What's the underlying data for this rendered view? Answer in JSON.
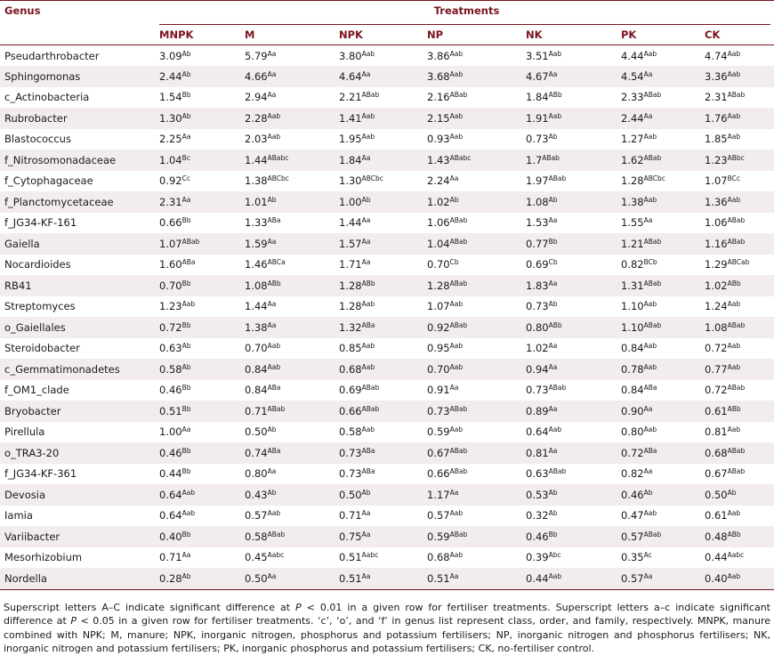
{
  "header": {
    "genus_label": "Genus",
    "treatments_label": "Treatments",
    "columns": [
      "MNPK",
      "M",
      "NPK",
      "NP",
      "NK",
      "PK",
      "CK"
    ]
  },
  "rows": [
    {
      "genus": "Pseudarthrobacter",
      "cells": [
        [
          "3.09",
          "Ab"
        ],
        [
          "5.79",
          "Aa"
        ],
        [
          "3.80",
          "Aab"
        ],
        [
          "3.86",
          "Aab"
        ],
        [
          "3.51",
          "Aab"
        ],
        [
          "4.44",
          "Aab"
        ],
        [
          "4.74",
          "Aab"
        ]
      ]
    },
    {
      "genus": "Sphingomonas",
      "cells": [
        [
          "2.44",
          "Ab"
        ],
        [
          "4.66",
          "Aa"
        ],
        [
          "4.64",
          "Aa"
        ],
        [
          "3.68",
          "Aab"
        ],
        [
          "4.67",
          "Aa"
        ],
        [
          "4.54",
          "Aa"
        ],
        [
          "3.36",
          "Aab"
        ]
      ]
    },
    {
      "genus": "c_Actinobacteria",
      "cells": [
        [
          "1.54",
          "Bb"
        ],
        [
          "2.94",
          "Aa"
        ],
        [
          "2.21",
          "ABab"
        ],
        [
          "2.16",
          "ABab"
        ],
        [
          "1.84",
          "ABb"
        ],
        [
          "2.33",
          "ABab"
        ],
        [
          "2.31",
          "ABab"
        ]
      ]
    },
    {
      "genus": "Rubrobacter",
      "cells": [
        [
          "1.30",
          "Ab"
        ],
        [
          "2.28",
          "Aab"
        ],
        [
          "1.41",
          "Aab"
        ],
        [
          "2.15",
          "Aab"
        ],
        [
          "1.91",
          "Aab"
        ],
        [
          "2.44",
          "Aa"
        ],
        [
          "1.76",
          "Aab"
        ]
      ]
    },
    {
      "genus": "Blastococcus",
      "cells": [
        [
          "2.25",
          "Aa"
        ],
        [
          "2.03",
          "Aab"
        ],
        [
          "1.95",
          "Aab"
        ],
        [
          "0.93",
          "Aab"
        ],
        [
          "0.73",
          "Ab"
        ],
        [
          "1.27",
          "Aab"
        ],
        [
          "1.85",
          "Aab"
        ]
      ]
    },
    {
      "genus": "f_Nitrosomonadaceae",
      "cells": [
        [
          "1.04",
          "Bc"
        ],
        [
          "1.44",
          "ABabc"
        ],
        [
          "1.84",
          "Aa"
        ],
        [
          "1.43",
          "ABabc"
        ],
        [
          "1.7",
          "ABab"
        ],
        [
          "1.62",
          "ABab"
        ],
        [
          "1.23",
          "ABbc"
        ]
      ]
    },
    {
      "genus": "f_Cytophagaceae",
      "cells": [
        [
          "0.92",
          "Cc"
        ],
        [
          "1.38",
          "ABCbc"
        ],
        [
          "1.30",
          "ABCbc"
        ],
        [
          "2.24",
          "Aa"
        ],
        [
          "1.97",
          "ABab"
        ],
        [
          "1.28",
          "ABCbc"
        ],
        [
          "1.07",
          "BCc"
        ]
      ]
    },
    {
      "genus": "f_Planctomycetaceae",
      "cells": [
        [
          "2.31",
          "Aa"
        ],
        [
          "1.01",
          "Ab"
        ],
        [
          "1.00",
          "Ab"
        ],
        [
          "1.02",
          "Ab"
        ],
        [
          "1.08",
          "Ab"
        ],
        [
          "1.38",
          "Aab"
        ],
        [
          "1.36",
          "Aab"
        ]
      ]
    },
    {
      "genus": "f_JG34-KF-161",
      "cells": [
        [
          "0.66",
          "Bb"
        ],
        [
          "1.33",
          "ABa"
        ],
        [
          "1.44",
          "Aa"
        ],
        [
          "1.06",
          "ABab"
        ],
        [
          "1.53",
          "Aa"
        ],
        [
          "1.55",
          "Aa"
        ],
        [
          "1.06",
          "ABab"
        ]
      ]
    },
    {
      "genus": "Gaiella",
      "cells": [
        [
          "1.07",
          "ABab"
        ],
        [
          "1.59",
          "Aa"
        ],
        [
          "1.57",
          "Aa"
        ],
        [
          "1.04",
          "ABab"
        ],
        [
          "0.77",
          "Bb"
        ],
        [
          "1.21",
          "ABab"
        ],
        [
          "1.16",
          "ABab"
        ]
      ]
    },
    {
      "genus": "Nocardioides",
      "cells": [
        [
          "1.60",
          "ABa"
        ],
        [
          "1.46",
          "ABCa"
        ],
        [
          "1.71",
          "Aa"
        ],
        [
          "0.70",
          "Cb"
        ],
        [
          "0.69",
          "Cb"
        ],
        [
          "0.82",
          "BCb"
        ],
        [
          "1.29",
          "ABCab"
        ]
      ]
    },
    {
      "genus": "RB41",
      "cells": [
        [
          "0.70",
          "Bb"
        ],
        [
          "1.08",
          "ABb"
        ],
        [
          "1.28",
          "ABb"
        ],
        [
          "1.28",
          "ABab"
        ],
        [
          "1.83",
          "Aa"
        ],
        [
          "1.31",
          "ABab"
        ],
        [
          "1.02",
          "ABb"
        ]
      ]
    },
    {
      "genus": "Streptomyces",
      "cells": [
        [
          "1.23",
          "Aab"
        ],
        [
          "1.44",
          "Aa"
        ],
        [
          "1.28",
          "Aab"
        ],
        [
          "1.07",
          "Aab"
        ],
        [
          "0.73",
          "Ab"
        ],
        [
          "1.10",
          "Aab"
        ],
        [
          "1.24",
          "Aab"
        ]
      ]
    },
    {
      "genus": "o_Gaiellales",
      "cells": [
        [
          "0.72",
          "Bb"
        ],
        [
          "1.38",
          "Aa"
        ],
        [
          "1.32",
          "ABa"
        ],
        [
          "0.92",
          "ABab"
        ],
        [
          "0.80",
          "ABb"
        ],
        [
          "1.10",
          "ABab"
        ],
        [
          "1.08",
          "ABab"
        ]
      ]
    },
    {
      "genus": "Steroidobacter",
      "cells": [
        [
          "0.63",
          "Ab"
        ],
        [
          "0.70",
          "Aab"
        ],
        [
          "0.85",
          "Aab"
        ],
        [
          "0.95",
          "Aab"
        ],
        [
          "1.02",
          "Aa"
        ],
        [
          "0.84",
          "Aab"
        ],
        [
          "0.72",
          "Aab"
        ]
      ]
    },
    {
      "genus": "c_Gemmatimonadetes",
      "cells": [
        [
          "0.58",
          "Ab"
        ],
        [
          "0.84",
          "Aab"
        ],
        [
          "0.68",
          "Aab"
        ],
        [
          "0.70",
          "Aab"
        ],
        [
          "0.94",
          "Aa"
        ],
        [
          "0.78",
          "Aab"
        ],
        [
          "0.77",
          "Aab"
        ]
      ]
    },
    {
      "genus": "f_OM1_clade",
      "cells": [
        [
          "0.46",
          "Bb"
        ],
        [
          "0.84",
          "ABa"
        ],
        [
          "0.69",
          "ABab"
        ],
        [
          "0.91",
          "Aa"
        ],
        [
          "0.73",
          "ABab"
        ],
        [
          "0.84",
          "ABa"
        ],
        [
          "0.72",
          "ABab"
        ]
      ]
    },
    {
      "genus": "Bryobacter",
      "cells": [
        [
          "0.51",
          "Bb"
        ],
        [
          "0.71",
          "ABab"
        ],
        [
          "0.66",
          "ABab"
        ],
        [
          "0.73",
          "ABab"
        ],
        [
          "0.89",
          "Aa"
        ],
        [
          "0.90",
          "Aa"
        ],
        [
          "0.61",
          "ABb"
        ]
      ]
    },
    {
      "genus": "Pirellula",
      "cells": [
        [
          "1.00",
          "Aa"
        ],
        [
          "0.50",
          "Ab"
        ],
        [
          "0.58",
          "Aab"
        ],
        [
          "0.59",
          "Aab"
        ],
        [
          "0.64",
          "Aab"
        ],
        [
          "0.80",
          "Aab"
        ],
        [
          "0.81",
          "Aab"
        ]
      ]
    },
    {
      "genus": "o_TRA3-20",
      "cells": [
        [
          "0.46",
          "Bb"
        ],
        [
          "0.74",
          "ABa"
        ],
        [
          "0.73",
          "ABa"
        ],
        [
          "0.67",
          "ABab"
        ],
        [
          "0.81",
          "Aa"
        ],
        [
          "0.72",
          "ABa"
        ],
        [
          "0.68",
          "ABab"
        ]
      ]
    },
    {
      "genus": "f_JG34-KF-361",
      "cells": [
        [
          "0.44",
          "Bb"
        ],
        [
          "0.80",
          "Aa"
        ],
        [
          "0.73",
          "ABa"
        ],
        [
          "0.66",
          "ABab"
        ],
        [
          "0.63",
          "ABab"
        ],
        [
          "0.82",
          "Aa"
        ],
        [
          "0.67",
          "ABab"
        ]
      ]
    },
    {
      "genus": "Devosia",
      "cells": [
        [
          "0.64",
          "Aab"
        ],
        [
          "0.43",
          "Ab"
        ],
        [
          "0.50",
          "Ab"
        ],
        [
          "1.17",
          "Aa"
        ],
        [
          "0.53",
          "Ab"
        ],
        [
          "0.46",
          "Ab"
        ],
        [
          "0.50",
          "Ab"
        ]
      ]
    },
    {
      "genus": "Iamia",
      "cells": [
        [
          "0.64",
          "Aab"
        ],
        [
          "0.57",
          "Aab"
        ],
        [
          "0.71",
          "Aa"
        ],
        [
          "0.57",
          "Aab"
        ],
        [
          "0.32",
          "Ab"
        ],
        [
          "0.47",
          "Aab"
        ],
        [
          "0.61",
          "Aab"
        ]
      ]
    },
    {
      "genus": "Variibacter",
      "cells": [
        [
          "0.40",
          "Bb"
        ],
        [
          "0.58",
          "ABab"
        ],
        [
          "0.75",
          "Aa"
        ],
        [
          "0.59",
          "ABab"
        ],
        [
          "0.46",
          "Bb"
        ],
        [
          "0.57",
          "ABab"
        ],
        [
          "0.48",
          "ABb"
        ]
      ]
    },
    {
      "genus": "Mesorhizobium",
      "cells": [
        [
          "0.71",
          "Aa"
        ],
        [
          "0.45",
          "Aabc"
        ],
        [
          "0.51",
          "Aabc"
        ],
        [
          "0.68",
          "Aab"
        ],
        [
          "0.39",
          "Abc"
        ],
        [
          "0.35",
          "Ac"
        ],
        [
          "0.44",
          "Aabc"
        ]
      ]
    },
    {
      "genus": "Nordella",
      "cells": [
        [
          "0.28",
          "Ab"
        ],
        [
          "0.50",
          "Aa"
        ],
        [
          "0.51",
          "Aa"
        ],
        [
          "0.51",
          "Aa"
        ],
        [
          "0.44",
          "Aab"
        ],
        [
          "0.57",
          "Aa"
        ],
        [
          "0.40",
          "Aab"
        ]
      ]
    }
  ],
  "footnote": {
    "p1": "Superscript letters A–C indicate significant difference at ",
    "p_label": "P",
    "p2": " < 0.01 in a given row for fertiliser treatments. Superscript letters a–c indicate significant difference at ",
    "p3": " < 0.05 in a given row for fertiliser treatments. ‘c’, ‘o’, and ‘f’ in genus list represent class, order, and family, respectively. MNPK, manure combined with NPK; M, manure; NPK, inorganic nitrogen, phosphorus and potassium fertilisers; NP, inorganic nitrogen and phosphorus fertilisers; NK, inorganic nitrogen and potassium fertilisers; PK, inorganic phosphorus and potassium fertilisers; CK, no-fertiliser control."
  },
  "colors": {
    "header": "#7a1420",
    "row_shade": "#f3ecec"
  }
}
